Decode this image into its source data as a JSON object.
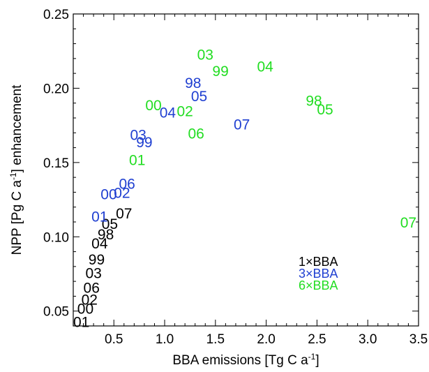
{
  "chart_data": {
    "type": "scatter",
    "title": "",
    "xlabel": "BBA emissions [Tg C a",
    "xlabel_sup": "-1",
    "xlabel_tail": "]",
    "ylabel": "NPP [Pg C a",
    "ylabel_sup": "-1",
    "ylabel_tail": "] enhancement",
    "xlim": [
      0.1,
      3.5
    ],
    "ylim": [
      0.04,
      0.25
    ],
    "xticks": [
      "0.5",
      "1.0",
      "1.5",
      "2.0",
      "2.5",
      "3.0",
      "3.5"
    ],
    "yticks": [
      "0.05",
      "0.10",
      "0.15",
      "0.20",
      "0.25"
    ],
    "grid": false,
    "legend": "bottom-right",
    "series": [
      {
        "name": "1×BBA",
        "color": "#000000",
        "points": [
          {
            "label": "01",
            "x": 0.18,
            "y": 0.043
          },
          {
            "label": "00",
            "x": 0.22,
            "y": 0.052
          },
          {
            "label": "02",
            "x": 0.26,
            "y": 0.058
          },
          {
            "label": "06",
            "x": 0.28,
            "y": 0.066
          },
          {
            "label": "03",
            "x": 0.3,
            "y": 0.076
          },
          {
            "label": "99",
            "x": 0.33,
            "y": 0.085
          },
          {
            "label": "04",
            "x": 0.36,
            "y": 0.096
          },
          {
            "label": "98",
            "x": 0.42,
            "y": 0.102
          },
          {
            "label": "05",
            "x": 0.46,
            "y": 0.109
          },
          {
            "label": "07",
            "x": 0.6,
            "y": 0.116
          }
        ]
      },
      {
        "name": "3×BBA",
        "color": "#1f3fd1",
        "points": [
          {
            "label": "01",
            "x": 0.36,
            "y": 0.114
          },
          {
            "label": "00",
            "x": 0.45,
            "y": 0.129
          },
          {
            "label": "02",
            "x": 0.58,
            "y": 0.13
          },
          {
            "label": "06",
            "x": 0.63,
            "y": 0.136
          },
          {
            "label": "99",
            "x": 0.8,
            "y": 0.164
          },
          {
            "label": "03",
            "x": 0.74,
            "y": 0.169
          },
          {
            "label": "04",
            "x": 1.03,
            "y": 0.184
          },
          {
            "label": "05",
            "x": 1.34,
            "y": 0.195
          },
          {
            "label": "98",
            "x": 1.28,
            "y": 0.204
          },
          {
            "label": "07",
            "x": 1.76,
            "y": 0.176
          }
        ]
      },
      {
        "name": "6×BBA",
        "color": "#22dd22",
        "points": [
          {
            "label": "01",
            "x": 0.73,
            "y": 0.152
          },
          {
            "label": "06",
            "x": 1.31,
            "y": 0.17
          },
          {
            "label": "02",
            "x": 1.2,
            "y": 0.185
          },
          {
            "label": "00",
            "x": 0.89,
            "y": 0.189
          },
          {
            "label": "98",
            "x": 2.47,
            "y": 0.192
          },
          {
            "label": "05",
            "x": 2.58,
            "y": 0.186
          },
          {
            "label": "03",
            "x": 1.4,
            "y": 0.223
          },
          {
            "label": "99",
            "x": 1.55,
            "y": 0.212
          },
          {
            "label": "04",
            "x": 1.99,
            "y": 0.215
          },
          {
            "label": "07",
            "x": 3.4,
            "y": 0.11
          }
        ]
      }
    ]
  }
}
